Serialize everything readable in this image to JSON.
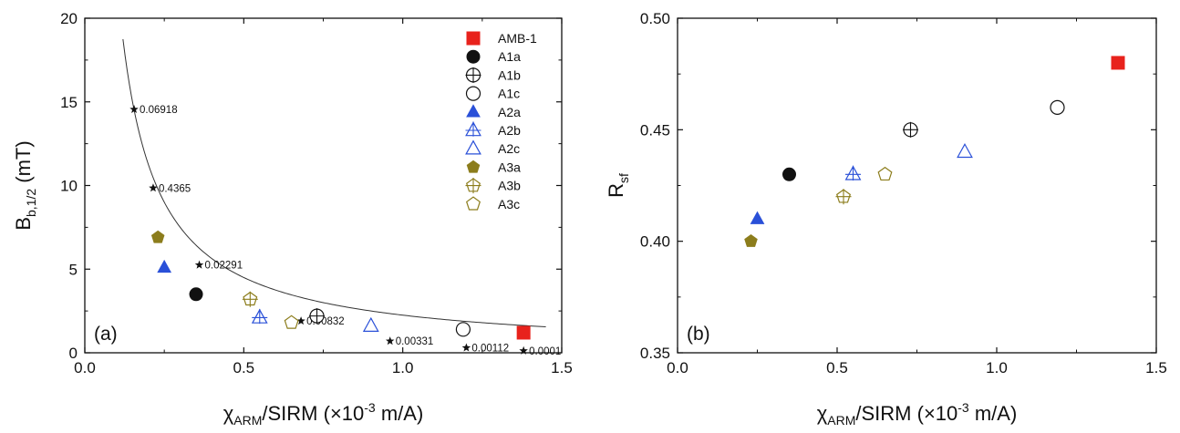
{
  "colors": {
    "red": "#e8221c",
    "black": "#111111",
    "blue": "#2a50d8",
    "olive": "#8c7d1c"
  },
  "chart_data": [
    {
      "panel": "(a)",
      "type": "scatter",
      "xlabel": {
        "main": "χ",
        "sub": "ARM",
        "rest": "/SIRM (×10",
        "sup": "-3",
        "tail": " m/A)"
      },
      "ylabel": {
        "main": "B",
        "sub": "b,1/2",
        "rest": " (mT)"
      },
      "xlim": [
        0.0,
        1.5
      ],
      "ylim": [
        0,
        20
      ],
      "xticks": [
        "0.0",
        "0.5",
        "1.0",
        "1.5"
      ],
      "yticks": [
        "0",
        "5",
        "10",
        "15",
        "20"
      ],
      "legend_position": "top-right",
      "series": [
        {
          "name": "AMB-1",
          "marker": "square-filled",
          "color": "red",
          "x": 1.38,
          "y": 1.2
        },
        {
          "name": "A1a",
          "marker": "circle-filled",
          "color": "black",
          "x": 0.35,
          "y": 3.5
        },
        {
          "name": "A1b",
          "marker": "circle-plus",
          "color": "black",
          "x": 0.73,
          "y": 2.2
        },
        {
          "name": "A1c",
          "marker": "circle-open",
          "color": "black",
          "x": 1.19,
          "y": 1.4
        },
        {
          "name": "A2a",
          "marker": "triangle-filled",
          "color": "blue",
          "x": 0.25,
          "y": 5.1
        },
        {
          "name": "A2b",
          "marker": "triangle-plus",
          "color": "blue",
          "x": 0.55,
          "y": 2.1
        },
        {
          "name": "A2c",
          "marker": "triangle-open",
          "color": "blue",
          "x": 0.9,
          "y": 1.6
        },
        {
          "name": "A3a",
          "marker": "pentagon-filled",
          "color": "olive",
          "x": 0.23,
          "y": 6.9
        },
        {
          "name": "A3b",
          "marker": "pentagon-plus",
          "color": "olive",
          "x": 0.52,
          "y": 3.2
        },
        {
          "name": "A3c",
          "marker": "pentagon-open",
          "color": "olive",
          "x": 0.65,
          "y": 1.8
        }
      ],
      "curve": {
        "type": "line",
        "x_range": [
          0.12,
          1.45
        ],
        "formula_y_over_x": "2.25 / x",
        "points": [
          {
            "x": 0.155,
            "y": 14.55,
            "label": "0.06918"
          },
          {
            "x": 0.215,
            "y": 9.85,
            "label": "0.4365"
          },
          {
            "x": 0.36,
            "y": 5.25,
            "label": "0.02291"
          },
          {
            "x": 0.68,
            "y": 1.9,
            "label": "0.00832"
          },
          {
            "x": 0.96,
            "y": 0.7,
            "label": "0.00331"
          },
          {
            "x": 1.2,
            "y": 0.3,
            "label": "0.00112"
          },
          {
            "x": 1.38,
            "y": 0.12,
            "label": "0.0001"
          }
        ]
      }
    },
    {
      "panel": "(b)",
      "type": "scatter",
      "xlabel": {
        "main": "χ",
        "sub": "ARM",
        "rest": "/SIRM (×10",
        "sup": "-3",
        "tail": " m/A)"
      },
      "ylabel": {
        "main": "R",
        "sub": "sf",
        "rest": ""
      },
      "xlim": [
        0.0,
        1.5
      ],
      "ylim": [
        0.35,
        0.5
      ],
      "xticks": [
        "0.0",
        "0.5",
        "1.0",
        "1.5"
      ],
      "yticks": [
        "0.35",
        "0.40",
        "0.45",
        "0.50"
      ],
      "series": [
        {
          "name": "AMB-1",
          "marker": "square-filled",
          "color": "red",
          "x": 1.38,
          "y": 0.48
        },
        {
          "name": "A1a",
          "marker": "circle-filled",
          "color": "black",
          "x": 0.35,
          "y": 0.43
        },
        {
          "name": "A1b",
          "marker": "circle-plus",
          "color": "black",
          "x": 0.73,
          "y": 0.45
        },
        {
          "name": "A1c",
          "marker": "circle-open",
          "color": "black",
          "x": 1.19,
          "y": 0.46
        },
        {
          "name": "A2a",
          "marker": "triangle-filled",
          "color": "blue",
          "x": 0.25,
          "y": 0.41
        },
        {
          "name": "A2b",
          "marker": "triangle-plus",
          "color": "blue",
          "x": 0.55,
          "y": 0.43
        },
        {
          "name": "A2c",
          "marker": "triangle-open",
          "color": "blue",
          "x": 0.9,
          "y": 0.44
        },
        {
          "name": "A3a",
          "marker": "pentagon-filled",
          "color": "olive",
          "x": 0.23,
          "y": 0.4
        },
        {
          "name": "A3b",
          "marker": "pentagon-plus",
          "color": "olive",
          "x": 0.52,
          "y": 0.42
        },
        {
          "name": "A3c",
          "marker": "pentagon-open",
          "color": "olive",
          "x": 0.65,
          "y": 0.43
        }
      ]
    }
  ]
}
